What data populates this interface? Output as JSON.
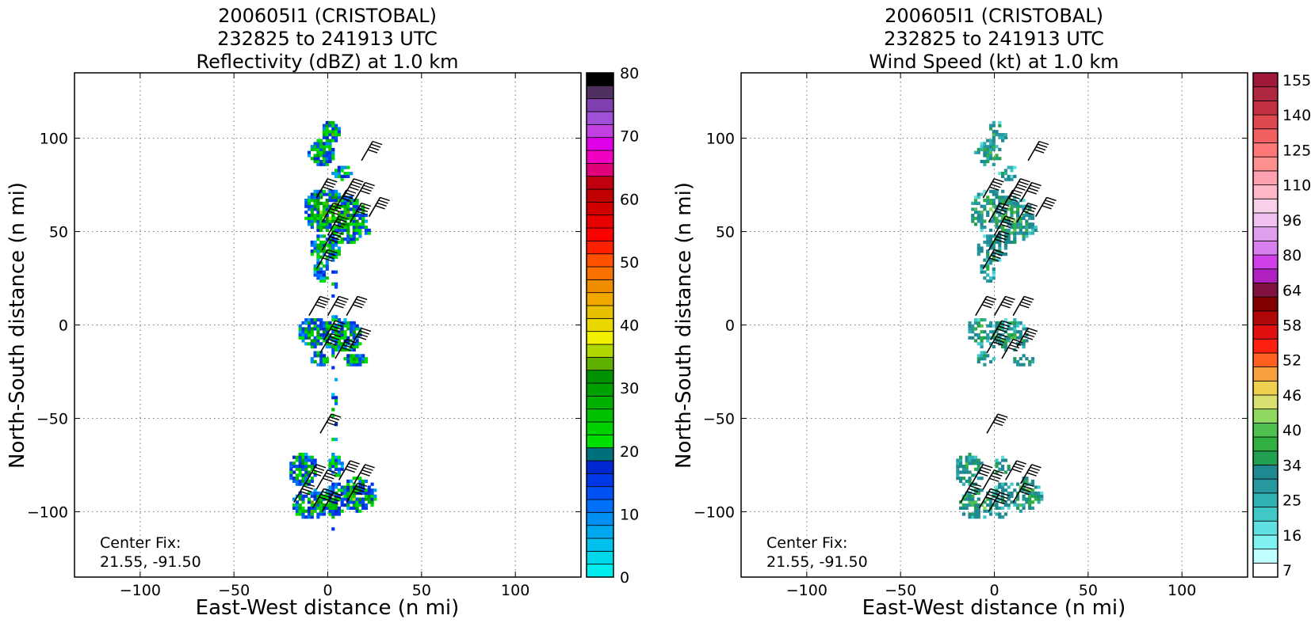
{
  "chart_data": [
    {
      "type": "heatmap",
      "title": [
        "200605I1 (CRISTOBAL)",
        "232825 to 241913 UTC",
        "Reflectivity (dBZ) at 1.0 km"
      ],
      "xlabel": "East-West distance (n mi)",
      "ylabel": "North-South distance (n mi)",
      "xlim": [
        -135,
        135
      ],
      "ylim": [
        -135,
        135
      ],
      "xticks": [
        -100,
        -50,
        0,
        50,
        100
      ],
      "yticks": [
        -100,
        -50,
        0,
        50,
        100
      ],
      "tick_labels_x": [
        "−100",
        "−50",
        "0",
        "50",
        "100"
      ],
      "tick_labels_y": [
        "−100",
        "−50",
        "0",
        "50",
        "100"
      ],
      "grid": true,
      "annotation": [
        "Center Fix:",
        "21.55, -91.50"
      ],
      "colorbar": {
        "min": 0,
        "max": 80,
        "step": 2.5,
        "tick_values": [
          0,
          10,
          20,
          30,
          40,
          50,
          60,
          70,
          80
        ],
        "tick_labels": [
          "0",
          "10",
          "20",
          "30",
          "40",
          "50",
          "60",
          "70",
          "80"
        ],
        "colors": [
          "#00eeee",
          "#00d8ea",
          "#00c0ee",
          "#00a8f0",
          "#0090f4",
          "#0070f8",
          "#0050f4",
          "#0038e8",
          "#0028d0",
          "#00707a",
          "#00e000",
          "#00d000",
          "#00c000",
          "#00b000",
          "#00a000",
          "#009000",
          "#60b000",
          "#b0d800",
          "#f0f000",
          "#e8d800",
          "#e8c000",
          "#f0a800",
          "#f08c00",
          "#f87000",
          "#ff5000",
          "#ff2000",
          "#ff0000",
          "#e80000",
          "#d00000",
          "#c00000",
          "#c00010",
          "#e0007a",
          "#f000c0",
          "#e000e8",
          "#c040e0",
          "#a050d8",
          "#8040b0",
          "#503060",
          "#000000"
        ]
      },
      "data_regions": [
        {
          "x": [
            -18,
            10
          ],
          "y": [
            80,
            112
          ],
          "value_range_dBZ": [
            15,
            40
          ]
        },
        {
          "x": [
            -18,
            22
          ],
          "y": [
            30,
            80
          ],
          "value_range_dBZ": [
            5,
            45
          ]
        },
        {
          "x": [
            -15,
            22
          ],
          "y": [
            -20,
            10
          ],
          "value_range_dBZ": [
            5,
            40
          ]
        },
        {
          "x": [
            -25,
            25
          ],
          "y": [
            -105,
            -70
          ],
          "value_range_dBZ": [
            5,
            35
          ]
        }
      ]
    },
    {
      "type": "heatmap",
      "title": [
        "200605I1 (CRISTOBAL)",
        "232825 to 241913 UTC",
        "Wind Speed (kt) at 1.0 km"
      ],
      "xlabel": "East-West distance (n mi)",
      "ylabel": "North-South distance (n mi)",
      "xlim": [
        -135,
        135
      ],
      "ylim": [
        -135,
        135
      ],
      "xticks": [
        -100,
        -50,
        0,
        50,
        100
      ],
      "yticks": [
        -100,
        -50,
        0,
        50,
        100
      ],
      "tick_labels_x": [
        "−100",
        "−50",
        "0",
        "50",
        "100"
      ],
      "tick_labels_y": [
        "−100",
        "−50",
        "0",
        "50",
        "100"
      ],
      "grid": true,
      "annotation": [
        "Center Fix:",
        "21.55, -91.50"
      ],
      "colorbar": {
        "tick_labels": [
          "7",
          "16",
          "25",
          "34",
          "40",
          "46",
          "52",
          "58",
          "64",
          "80",
          "96",
          "110",
          "125",
          "140",
          "155"
        ],
        "colors": [
          "#ffffff",
          "#c0ffff",
          "#80f0f0",
          "#60e0e0",
          "#40c8c8",
          "#30b0b0",
          "#2898a0",
          "#208890",
          "#20a050",
          "#30b040",
          "#50c050",
          "#90d860",
          "#d8e070",
          "#f0d050",
          "#f8a040",
          "#ff6020",
          "#ff2010",
          "#e01010",
          "#b00808",
          "#800000",
          "#801040",
          "#b020c0",
          "#d040e8",
          "#d880f0",
          "#e0a0f0",
          "#f0c0f0",
          "#f8d0e8",
          "#ffb8c8",
          "#ffa0b0",
          "#ff9090",
          "#ff7878",
          "#f06060",
          "#e04850",
          "#c03040",
          "#b02840",
          "#a01838"
        ]
      },
      "data_regions": [
        {
          "x": [
            -10,
            15
          ],
          "y": [
            20,
            108
          ],
          "value_range_kt": [
            25,
            46
          ]
        },
        {
          "x": [
            -12,
            20
          ],
          "y": [
            -20,
            8
          ],
          "value_range_kt": [
            16,
            34
          ]
        },
        {
          "x": [
            -22,
            22
          ],
          "y": [
            -105,
            -65
          ],
          "value_range_kt": [
            16,
            34
          ]
        }
      ]
    }
  ]
}
